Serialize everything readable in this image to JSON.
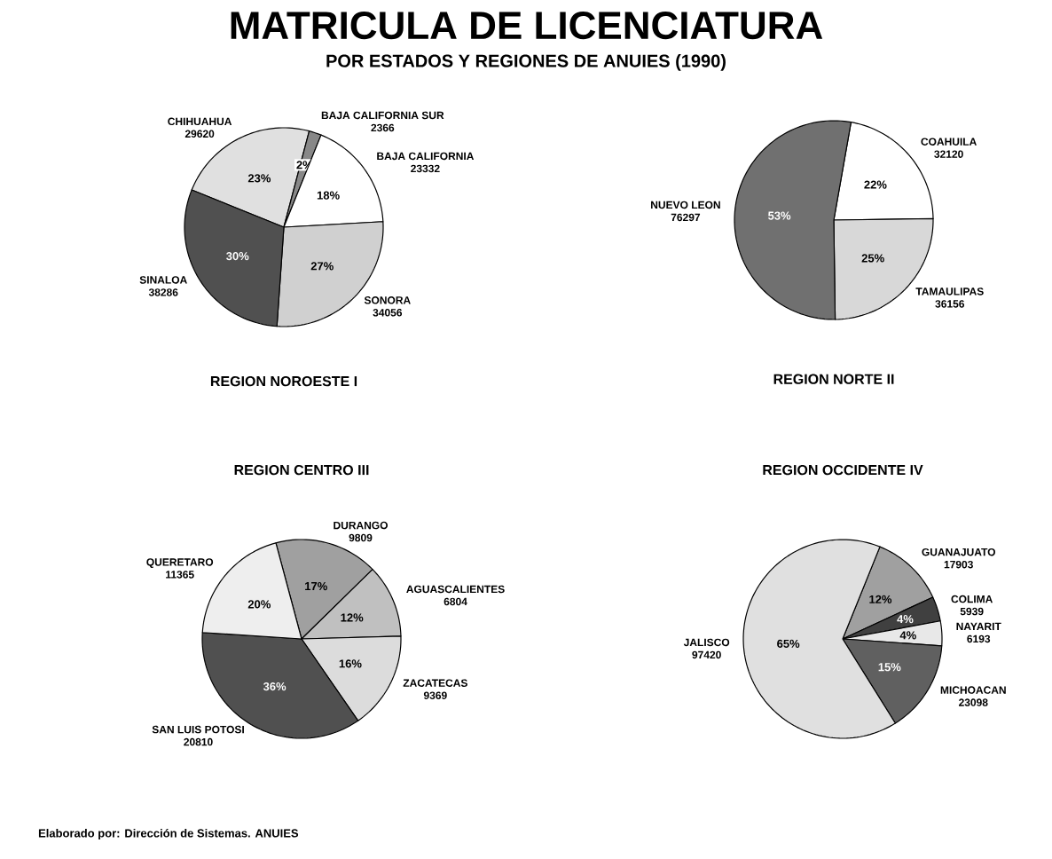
{
  "chart_data": [
    {
      "type": "other",
      "title": "MATRICULA DE LICENCIATURA",
      "subtitle": "POR ESTADOS Y REGIONES DE ANUIES (1990)",
      "annotations": [
        "Elaborado por: Dirección de Sistemas. ANUIES"
      ]
    },
    {
      "type": "pie",
      "title": "REGION NOROESTE I",
      "categories": [
        "CHIHUAHUA",
        "BAJA CALIFORNIA SUR",
        "BAJA CALIFORNIA",
        "SONORA",
        "SINALOA"
      ],
      "values": [
        23,
        2,
        18,
        27,
        30
      ],
      "value_labels": [
        "23%",
        "2%",
        "18%",
        "27%",
        "30%"
      ],
      "annotations": [
        "29620",
        "2366",
        "23332",
        "34056",
        "38286"
      ],
      "colors": [
        "#e0e0e0",
        "#888888",
        "#ffffff",
        "#d0d0d0",
        "#505050"
      ]
    },
    {
      "type": "pie",
      "title": "REGION NORTE II",
      "categories": [
        "COAHUILA",
        "TAMAULIPAS",
        "NUEVO LEON"
      ],
      "values": [
        22,
        25,
        53
      ],
      "value_labels": [
        "22%",
        "25%",
        "53%"
      ],
      "annotations": [
        "32120",
        "36156",
        "76297"
      ],
      "colors": [
        "#ffffff",
        "#d8d8d8",
        "#707070"
      ]
    },
    {
      "type": "pie",
      "title": "REGION CENTRO III",
      "categories": [
        "DURANGO",
        "AGUASCALIENTES",
        "ZACATECAS",
        "SAN LUIS POTOSI",
        "QUERETARO"
      ],
      "values": [
        17,
        12,
        16,
        36,
        20
      ],
      "value_labels": [
        "17%",
        "12%",
        "16%",
        "36%",
        "20%"
      ],
      "annotations": [
        "9809",
        "6804",
        "9369",
        "20810",
        "11365"
      ],
      "colors": [
        "#a0a0a0",
        "#c0c0c0",
        "#dcdcdc",
        "#505050",
        "#eeeeee"
      ]
    },
    {
      "type": "pie",
      "title": "REGION OCCIDENTE IV",
      "categories": [
        "GUANAJUATO",
        "COLIMA",
        "NAYARIT",
        "MICHOACAN",
        "JALISCO"
      ],
      "values": [
        12,
        4,
        4,
        15,
        65
      ],
      "value_labels": [
        "12%",
        "4%",
        "4%",
        "15%",
        "65%"
      ],
      "annotations": [
        "17903",
        "5939",
        "6193",
        "23098",
        "97420"
      ],
      "colors": [
        "#a0a0a0",
        "#404040",
        "#e8e8e8",
        "#606060",
        "#e0e0e0"
      ]
    }
  ]
}
